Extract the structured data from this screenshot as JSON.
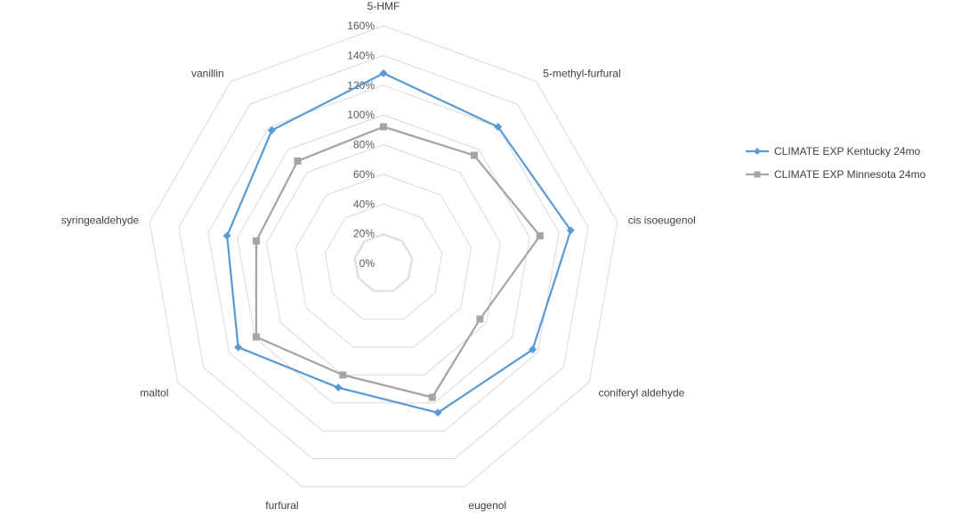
{
  "chart_data": {
    "type": "radar",
    "categories": [
      "5-HMF",
      "5-methyl-furfural",
      "cis isoeugenol",
      "coniferyl aldehyde",
      "eugenol",
      "furfural",
      "maltol",
      "syringealdehyde",
      "vanillin"
    ],
    "tick_labels": [
      "0%",
      "20%",
      "40%",
      "60%",
      "80%",
      "100%",
      "120%",
      "140%",
      "160%"
    ],
    "rmin": 0,
    "rmax": 160,
    "series": [
      {
        "name": "CLIMATE EXP Kentucky 24mo",
        "color": "#5b9bd5",
        "marker": "diamond",
        "values": [
          128,
          120,
          128,
          116,
          107,
          89,
          113,
          107,
          117
        ]
      },
      {
        "name": "CLIMATE EXP Minnesota 24mo",
        "color": "#a5a5a5",
        "marker": "square",
        "values": [
          92,
          95,
          107,
          75,
          96,
          80,
          99,
          87,
          90
        ]
      }
    ],
    "grid": true,
    "legend_position": "right"
  }
}
